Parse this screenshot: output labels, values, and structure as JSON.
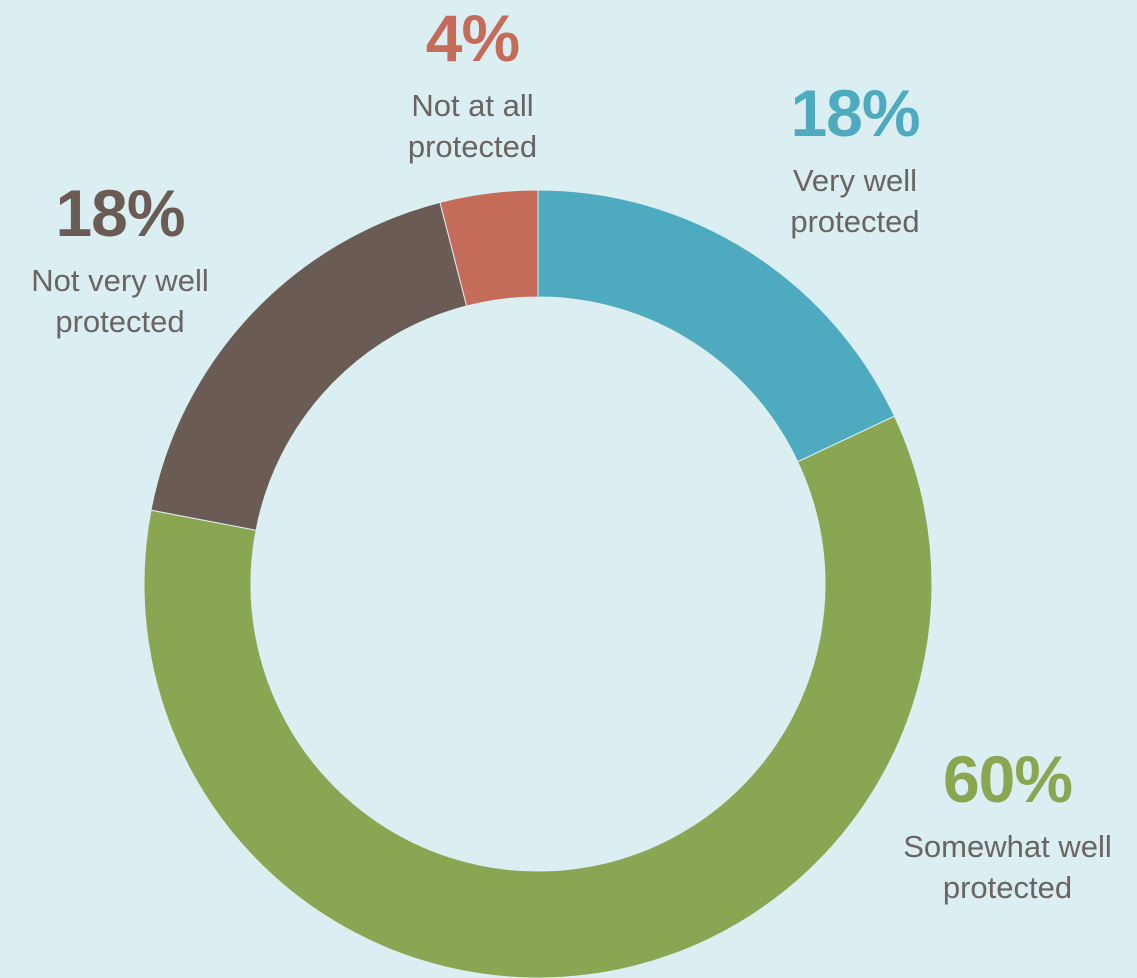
{
  "chart_data": {
    "type": "pie",
    "donut": true,
    "slices": [
      {
        "label": "Very well\nprotected",
        "value": 18,
        "value_label": "18%",
        "color": "#4eabbf"
      },
      {
        "label": "Somewhat well\nprotected",
        "value": 60,
        "value_label": "60%",
        "color": "#8aa653"
      },
      {
        "label": "Not very well\nprotected",
        "value": 18,
        "value_label": "18%",
        "color": "#6a5b55"
      },
      {
        "label": "Not at all\nprotected",
        "value": 4,
        "value_label": "4%",
        "color": "#c46b5a"
      }
    ]
  },
  "background_color": "#dbeef1",
  "text_color": "#6a6462"
}
